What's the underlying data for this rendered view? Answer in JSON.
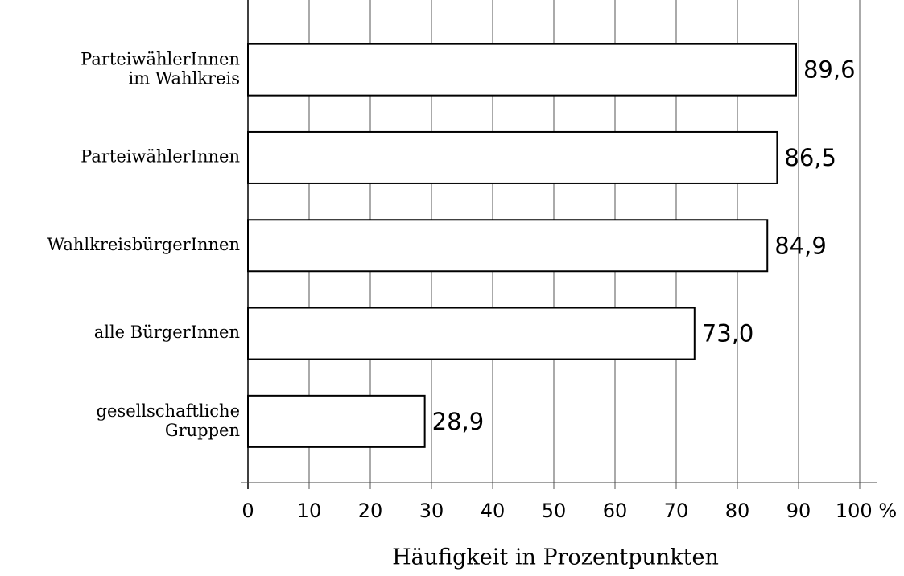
{
  "chart_data": {
    "type": "barh",
    "categories": [
      "ParteiwählerInnen\nim Wahlkreis",
      "ParteiwählerInnen",
      "WahlkreisbürgerInnen",
      "alle BürgerInnen",
      "gesellschaftliche\nGruppen"
    ],
    "values": [
      89.6,
      86.5,
      84.9,
      73.0,
      28.9
    ],
    "value_labels": [
      "89,6",
      "86,5",
      "84,9",
      "73,0",
      "28,9"
    ],
    "color": "#ffffff",
    "x_label": "Häufigkeit in Prozentpunkten",
    "xlim": [
      0,
      100
    ],
    "xticks": [
      0,
      10,
      20,
      30,
      40,
      50,
      60,
      70,
      80,
      90,
      {
        "value": 100,
        "label": "100 %"
      }
    ],
    "grid": true
  }
}
